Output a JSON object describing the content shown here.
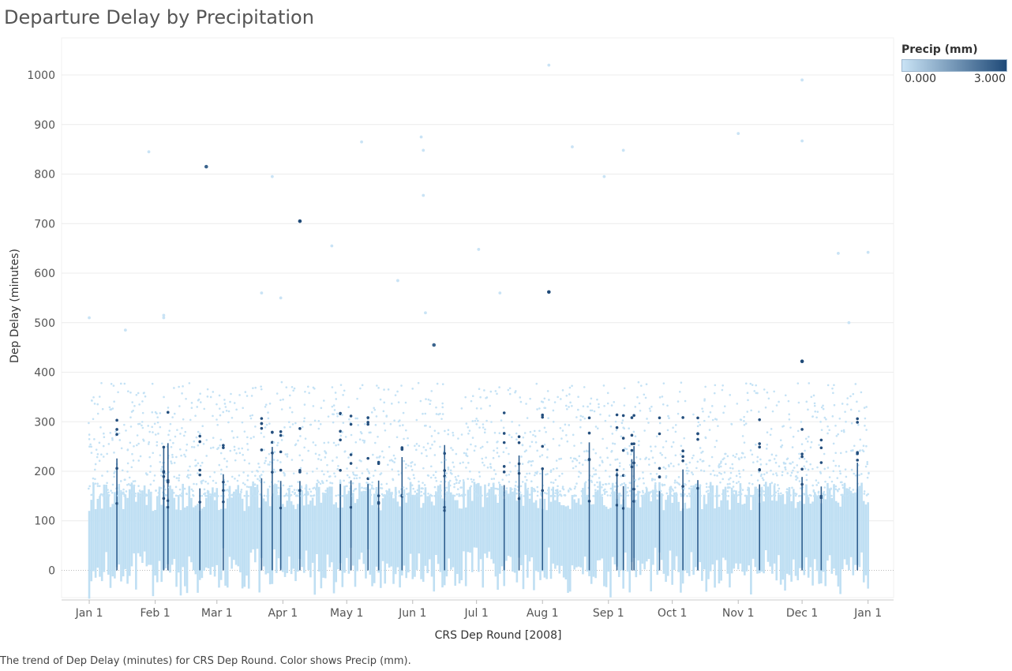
{
  "title": "Departure Delay by Precipitation",
  "caption": "The trend of Dep Delay (minutes) for CRS Dep Round.  Color shows Precip (mm).",
  "legend": {
    "title": "Precip (mm)",
    "min_label": "0.000",
    "max_label": "3.000",
    "color_low": "#bcdcf2",
    "color_high": "#1f4a78"
  },
  "chart_data": {
    "type": "scatter",
    "title": "Departure Delay by Precipitation",
    "xlabel": "CRS Dep Round [2008]",
    "ylabel": "Dep Delay (minutes)",
    "ylim": [
      -55,
      1075
    ],
    "xlim": [
      "2007-12-19",
      "2009-01-13"
    ],
    "x_tick_labels": [
      "Jan 1",
      "Feb 1",
      "Mar 1",
      "Apr 1",
      "May 1",
      "Jun 1",
      "Jul 1",
      "Aug 1",
      "Sep 1",
      "Oct 1",
      "Nov 1",
      "Dec 1",
      "Jan 1"
    ],
    "x_tick_dates": [
      "2008-01-01",
      "2008-02-01",
      "2008-03-01",
      "2008-04-01",
      "2008-05-01",
      "2008-06-01",
      "2008-07-01",
      "2008-08-01",
      "2008-09-01",
      "2008-10-01",
      "2008-11-01",
      "2008-12-01",
      "2009-01-01"
    ],
    "y_ticks": [
      0,
      100,
      200,
      300,
      400,
      500,
      600,
      700,
      800,
      900,
      1000
    ],
    "grid": true,
    "color_field": "Precip (mm)",
    "color_range": [
      0,
      3
    ],
    "outliers": [
      {
        "date": "2008-01-01",
        "delay": 510,
        "precip": 0
      },
      {
        "date": "2008-01-18",
        "delay": 485,
        "precip": 0
      },
      {
        "date": "2008-01-29",
        "delay": 845,
        "precip": 0
      },
      {
        "date": "2008-02-05",
        "delay": 510,
        "precip": 0
      },
      {
        "date": "2008-02-05",
        "delay": 515,
        "precip": 0
      },
      {
        "date": "2008-02-25",
        "delay": 815,
        "precip": 2.5
      },
      {
        "date": "2008-03-27",
        "delay": 795,
        "precip": 0
      },
      {
        "date": "2008-03-22",
        "delay": 560,
        "precip": 0
      },
      {
        "date": "2008-03-31",
        "delay": 550,
        "precip": 0
      },
      {
        "date": "2008-04-09",
        "delay": 705,
        "precip": 3
      },
      {
        "date": "2008-04-24",
        "delay": 655,
        "precip": 0
      },
      {
        "date": "2008-05-08",
        "delay": 865,
        "precip": 0
      },
      {
        "date": "2008-05-25",
        "delay": 585,
        "precip": 0
      },
      {
        "date": "2008-06-05",
        "delay": 875,
        "precip": 0
      },
      {
        "date": "2008-06-06",
        "delay": 848,
        "precip": 0
      },
      {
        "date": "2008-06-06",
        "delay": 757,
        "precip": 0
      },
      {
        "date": "2008-06-07",
        "delay": 520,
        "precip": 0
      },
      {
        "date": "2008-06-11",
        "delay": 455,
        "precip": 2.5
      },
      {
        "date": "2008-07-02",
        "delay": 648,
        "precip": 0
      },
      {
        "date": "2008-07-12",
        "delay": 560,
        "precip": 0
      },
      {
        "date": "2008-08-04",
        "delay": 1020,
        "precip": 0
      },
      {
        "date": "2008-08-04",
        "delay": 562,
        "precip": 3
      },
      {
        "date": "2008-08-15",
        "delay": 855,
        "precip": 0
      },
      {
        "date": "2008-08-30",
        "delay": 795,
        "precip": 0
      },
      {
        "date": "2008-09-08",
        "delay": 848,
        "precip": 0
      },
      {
        "date": "2008-11-01",
        "delay": 882,
        "precip": 0
      },
      {
        "date": "2008-12-01",
        "delay": 990,
        "precip": 0
      },
      {
        "date": "2008-12-01",
        "delay": 867,
        "precip": 0
      },
      {
        "date": "2008-12-01",
        "delay": 422,
        "precip": 3
      },
      {
        "date": "2008-12-18",
        "delay": 640,
        "precip": 0
      },
      {
        "date": "2008-12-23",
        "delay": 500,
        "precip": 0
      },
      {
        "date": "2009-01-01",
        "delay": 642,
        "precip": 0
      }
    ],
    "rain_days": [
      "2008-01-14",
      "2008-02-05",
      "2008-02-07",
      "2008-02-22",
      "2008-03-04",
      "2008-03-22",
      "2008-03-27",
      "2008-03-31",
      "2008-04-09",
      "2008-04-28",
      "2008-05-03",
      "2008-05-11",
      "2008-05-16",
      "2008-05-27",
      "2008-06-16",
      "2008-07-14",
      "2008-07-21",
      "2008-08-01",
      "2008-08-23",
      "2008-09-05",
      "2008-09-08",
      "2008-09-12",
      "2008-09-13",
      "2008-09-25",
      "2008-10-06",
      "2008-10-13",
      "2008-11-11",
      "2008-12-01",
      "2008-12-10",
      "2008-12-27"
    ]
  }
}
